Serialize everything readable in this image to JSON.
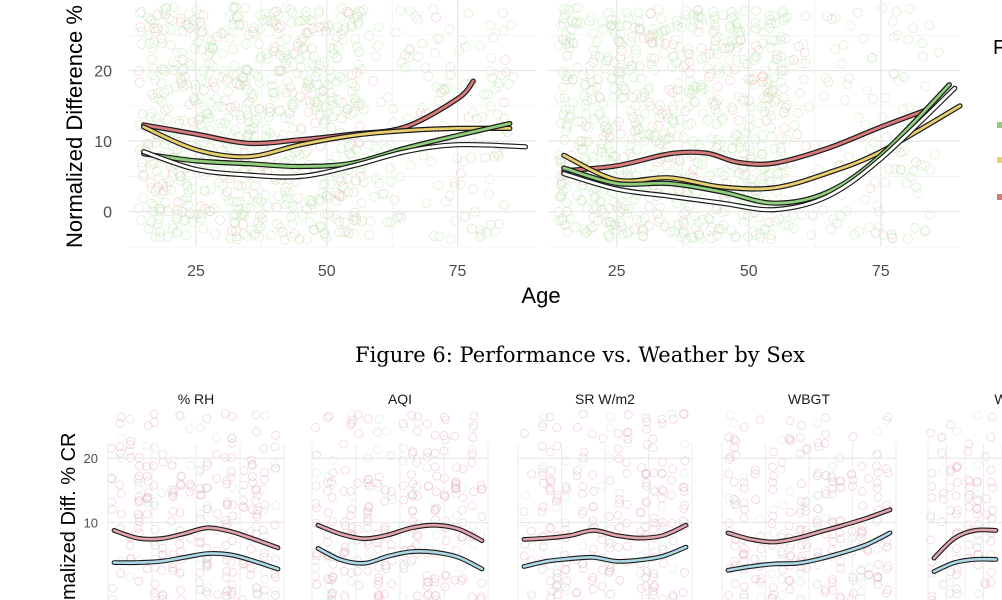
{
  "caption": "Figure 6: Performance vs. Weather by Sex",
  "top": {
    "ylabel": "Normalized Difference % C",
    "xlabel": "Age",
    "legend_title_fragment": "F",
    "colors": {
      "green": "#8fce7a",
      "yellow": "#e8cf6f",
      "red": "#d97a7a",
      "outline": "#222222",
      "point_green": "#bfe6b0",
      "point_red": "#f0b8b8"
    },
    "panels": [
      {
        "x_ticks": [
          "25",
          "50",
          "75"
        ],
        "y_ticks": [
          "0",
          "10",
          "20"
        ],
        "x_tick_values": [
          25,
          50,
          75
        ],
        "y_tick_values": [
          0,
          10,
          20
        ],
        "xlim": [
          12,
          90
        ],
        "ylim": [
          -5,
          30
        ],
        "series": [
          {
            "color": "red",
            "x": [
              15,
              25,
              35,
              45,
              55,
              65,
              75,
              78
            ],
            "y": [
              12.3,
              11,
              9.7,
              10.2,
              11,
              12,
              16,
              18.5
            ]
          },
          {
            "color": "yellow",
            "x": [
              15,
              25,
              35,
              45,
              55,
              65,
              75,
              85
            ],
            "y": [
              12,
              8.8,
              7.8,
              9.5,
              10.8,
              11.5,
              11.8,
              11.8
            ]
          },
          {
            "color": "green",
            "x": [
              15,
              25,
              35,
              45,
              55,
              65,
              75,
              85
            ],
            "y": [
              8.2,
              7.2,
              6.8,
              6.4,
              6.9,
              9,
              10.8,
              12.5
            ]
          },
          {
            "color": "white",
            "x": [
              15,
              25,
              35,
              45,
              55,
              65,
              75,
              88
            ],
            "y": [
              8.5,
              6,
              5.2,
              5,
              6.5,
              8.5,
              9.5,
              9.2
            ]
          }
        ]
      },
      {
        "x_ticks": [
          "25",
          "50",
          "75"
        ],
        "y_ticks": [],
        "x_tick_values": [
          25,
          50,
          75
        ],
        "y_tick_values": [
          0,
          10,
          20
        ],
        "xlim": [
          12,
          90
        ],
        "ylim": [
          -5,
          30
        ],
        "series": [
          {
            "color": "red",
            "x": [
              15,
              25,
              35,
              42,
              48,
              55,
              65,
              75,
              85
            ],
            "y": [
              5.8,
              6.5,
              8.2,
              8.3,
              7,
              6.9,
              9,
              12,
              14.8
            ]
          },
          {
            "color": "yellow",
            "x": [
              15,
              25,
              35,
              45,
              55,
              65,
              75,
              90
            ],
            "y": [
              8,
              4.5,
              4.8,
              3.5,
              3.4,
              5.5,
              8.5,
              15
            ]
          },
          {
            "color": "green",
            "x": [
              15,
              25,
              35,
              45,
              55,
              65,
              75,
              88
            ],
            "y": [
              6.2,
              4,
              4,
              2.8,
              1.2,
              2.8,
              8,
              18
            ]
          },
          {
            "color": "white",
            "x": [
              15,
              25,
              35,
              45,
              55,
              65,
              75,
              89
            ],
            "y": [
              5.4,
              3.2,
              2.2,
              1.2,
              0.3,
              2.2,
              7.5,
              17.5
            ]
          }
        ]
      }
    ]
  },
  "bottom": {
    "ylabel": "malized Diff. % CR",
    "y_ticks": [
      "10",
      "20"
    ],
    "y_tick_values": [
      10,
      20
    ],
    "ylim": [
      -2,
      27
    ],
    "colors": {
      "red": "#e2a3ad",
      "blue": "#add8e6",
      "point_red": "#e8aab6",
      "point_blue": "#c9dde8"
    },
    "panels": [
      {
        "title": "% RH",
        "red": [
          8.8,
          7.6,
          7.5,
          8.3,
          9.2,
          8.6,
          7.4,
          6.1
        ],
        "blue": [
          3.8,
          3.8,
          4.0,
          4.6,
          5.2,
          5.0,
          4.0,
          2.8
        ]
      },
      {
        "title": "AQI",
        "red": [
          9.6,
          8.2,
          7.5,
          8.1,
          9.2,
          9.6,
          9.0,
          7.2
        ],
        "blue": [
          6.0,
          4.2,
          3.7,
          4.8,
          5.5,
          5.4,
          4.6,
          2.8
        ]
      },
      {
        "title": "SR W/m2",
        "red": [
          7.4,
          7.6,
          8.0,
          8.8,
          8.0,
          7.6,
          8.0,
          9.6
        ],
        "blue": [
          3.2,
          4.0,
          4.4,
          4.6,
          4.0,
          4.2,
          4.8,
          6.2
        ]
      },
      {
        "title": "WBGT",
        "red": [
          8.4,
          7.4,
          7.0,
          7.6,
          8.6,
          9.6,
          10.7,
          12.0
        ],
        "blue": [
          2.6,
          3.2,
          3.6,
          3.7,
          4.4,
          5.4,
          6.6,
          8.4
        ]
      },
      {
        "title": "W",
        "red": [
          4.5,
          7.6,
          8.8,
          8.8
        ],
        "blue": [
          2.4,
          3.8,
          4.3,
          4.3
        ]
      }
    ]
  }
}
